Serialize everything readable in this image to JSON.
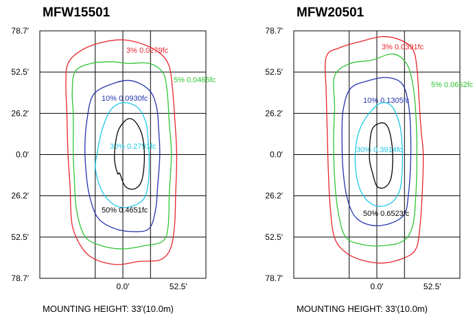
{
  "chart_data": [
    {
      "type": "contour",
      "title": "MFW15501",
      "caption": "MOUNTING HEIGHT: 33'(10.0m)",
      "y_tick_labels": [
        "78.7′",
        "52.5′",
        "26.2′",
        "0.0′",
        "26.2′",
        "52.5′",
        "78.7′"
      ],
      "x_tick_labels": [
        "0.0′",
        "52.5′"
      ],
      "xlim": [
        -78.7,
        78.7
      ],
      "ylim": [
        -78.7,
        78.7
      ],
      "grid": true,
      "contours": [
        {
          "label": "3% 0.0279fc",
          "color": "#e8242a",
          "points": [
            [
              -52,
              58
            ],
            [
              -40,
              66
            ],
            [
              -22,
              71
            ],
            [
              0,
              73
            ],
            [
              20,
              70
            ],
            [
              36,
              64
            ],
            [
              44,
              56
            ],
            [
              47,
              42
            ],
            [
              49,
              25
            ],
            [
              51,
              0
            ],
            [
              50,
              -25
            ],
            [
              49,
              -45
            ],
            [
              45,
              -60
            ],
            [
              35,
              -67
            ],
            [
              15,
              -68
            ],
            [
              -5,
              -70
            ],
            [
              -25,
              -67
            ],
            [
              -38,
              -60
            ],
            [
              -48,
              -45
            ],
            [
              -50,
              -20
            ],
            [
              -52,
              0
            ],
            [
              -53,
              25
            ],
            [
              -54,
              45
            ]
          ]
        },
        {
          "label": "5% 0.0465fc",
          "color": "#2ec431",
          "points": [
            [
              -45,
              53
            ],
            [
              -30,
              58
            ],
            [
              -10,
              59
            ],
            [
              5,
              58
            ],
            [
              25,
              58
            ],
            [
              38,
              52
            ],
            [
              42,
              40
            ],
            [
              44,
              20
            ],
            [
              46,
              0
            ],
            [
              44,
              -25
            ],
            [
              43,
              -45
            ],
            [
              38,
              -55
            ],
            [
              20,
              -58
            ],
            [
              0,
              -60
            ],
            [
              -20,
              -58
            ],
            [
              -36,
              -52
            ],
            [
              -44,
              -35
            ],
            [
              -46,
              -15
            ],
            [
              -47,
              0
            ],
            [
              -47,
              25
            ],
            [
              -48,
              40
            ]
          ]
        },
        {
          "label": "10% 0.0930fc",
          "color": "#2233aa",
          "points": [
            [
              -28,
              38
            ],
            [
              -10,
              45
            ],
            [
              8,
              47
            ],
            [
              25,
              41
            ],
            [
              32,
              30
            ],
            [
              34,
              15
            ],
            [
              35,
              0
            ],
            [
              33,
              -20
            ],
            [
              31,
              -35
            ],
            [
              25,
              -47
            ],
            [
              10,
              -49
            ],
            [
              -8,
              -47
            ],
            [
              -24,
              -40
            ],
            [
              -32,
              -25
            ],
            [
              -35,
              -10
            ],
            [
              -36,
              5
            ],
            [
              -34,
              22
            ]
          ]
        },
        {
          "label": "30% 0.2791fc",
          "color": "#1ec8e6",
          "points": [
            [
              -20,
              15
            ],
            [
              -12,
              28
            ],
            [
              0,
              33
            ],
            [
              14,
              30
            ],
            [
              22,
              20
            ],
            [
              24,
              8
            ],
            [
              25,
              -5
            ],
            [
              24,
              -18
            ],
            [
              20,
              -28
            ],
            [
              8,
              -33
            ],
            [
              -5,
              -33
            ],
            [
              -15,
              -28
            ],
            [
              -22,
              -20
            ],
            [
              -26,
              -8
            ],
            [
              -24,
              2
            ]
          ]
        },
        {
          "label": "50% 0.4651fc",
          "color": "#000000",
          "points": [
            [
              -5,
              14
            ],
            [
              3,
              22
            ],
            [
              10,
              22
            ],
            [
              17,
              15
            ],
            [
              20,
              5
            ],
            [
              20,
              -8
            ],
            [
              17,
              -18
            ],
            [
              10,
              -22
            ],
            [
              2,
              -20
            ],
            [
              -3,
              -12
            ],
            [
              -5,
              -12
            ],
            [
              -8,
              -2
            ]
          ]
        }
      ]
    },
    {
      "type": "contour",
      "title": "MFW20501",
      "caption": "MOUNTING HEIGHT: 33'(10.0m)",
      "y_tick_labels": [
        "78.7′",
        "52.5′",
        "26.2′",
        "0.0′",
        "26.2′",
        "52.5′",
        "78.7′"
      ],
      "x_tick_labels": [
        "0.0′",
        "52.5′"
      ],
      "xlim": [
        -78.7,
        78.7
      ],
      "ylim": [
        -78.7,
        78.7
      ],
      "grid": true,
      "contours": [
        {
          "label": "3% 0.0391fc",
          "color": "#e8242a",
          "points": [
            [
              -48,
              62
            ],
            [
              -35,
              68
            ],
            [
              -15,
              72
            ],
            [
              5,
              75
            ],
            [
              22,
              73
            ],
            [
              34,
              67
            ],
            [
              38,
              55
            ],
            [
              40,
              35
            ],
            [
              42,
              15
            ],
            [
              44,
              0
            ],
            [
              43,
              -25
            ],
            [
              41,
              -45
            ],
            [
              37,
              -60
            ],
            [
              25,
              -66
            ],
            [
              5,
              -69
            ],
            [
              -15,
              -67
            ],
            [
              -30,
              -62
            ],
            [
              -40,
              -53
            ],
            [
              -44,
              -35
            ],
            [
              -46,
              -10
            ],
            [
              -47,
              15
            ],
            [
              -48,
              40
            ]
          ]
        },
        {
          "label": "5% 0.0652fc",
          "color": "#2ec431",
          "points": [
            [
              -40,
              50
            ],
            [
              -25,
              58
            ],
            [
              -5,
              60
            ],
            [
              15,
              64
            ],
            [
              28,
              58
            ],
            [
              34,
              45
            ],
            [
              37,
              25
            ],
            [
              38,
              0
            ],
            [
              37,
              -25
            ],
            [
              34,
              -45
            ],
            [
              25,
              -55
            ],
            [
              5,
              -58
            ],
            [
              -15,
              -57
            ],
            [
              -30,
              -52
            ],
            [
              -37,
              -35
            ],
            [
              -40,
              -15
            ],
            [
              -41,
              10
            ],
            [
              -40,
              30
            ]
          ]
        },
        {
          "label": "10% 0.1305fc",
          "color": "#2233aa",
          "points": [
            [
              -25,
              42
            ],
            [
              -8,
              47
            ],
            [
              10,
              49
            ],
            [
              24,
              45
            ],
            [
              30,
              32
            ],
            [
              32,
              15
            ],
            [
              32,
              -5
            ],
            [
              30,
              -25
            ],
            [
              26,
              -38
            ],
            [
              12,
              -44
            ],
            [
              -5,
              -45
            ],
            [
              -20,
              -40
            ],
            [
              -28,
              -28
            ],
            [
              -32,
              -10
            ],
            [
              -33,
              10
            ],
            [
              -32,
              28
            ]
          ]
        },
        {
          "label": "30% 0.3914fc",
          "color": "#1ec8e6",
          "points": [
            [
              -15,
              18
            ],
            [
              -5,
              28
            ],
            [
              5,
              33
            ],
            [
              15,
              30
            ],
            [
              22,
              18
            ],
            [
              24,
              5
            ],
            [
              24,
              -10
            ],
            [
              22,
              -22
            ],
            [
              15,
              -30
            ],
            [
              3,
              -33
            ],
            [
              -8,
              -30
            ],
            [
              -16,
              -22
            ],
            [
              -20,
              -10
            ],
            [
              -20,
              5
            ]
          ]
        },
        {
          "label": "50% 0.6523fc",
          "color": "#000000",
          "points": [
            [
              -5,
              15
            ],
            [
              3,
              20
            ],
            [
              10,
              18
            ],
            [
              14,
              8
            ],
            [
              15,
              -5
            ],
            [
              13,
              -16
            ],
            [
              7,
              -21
            ],
            [
              0,
              -20
            ],
            [
              -4,
              -12
            ],
            [
              -7,
              -2
            ]
          ]
        }
      ]
    }
  ]
}
